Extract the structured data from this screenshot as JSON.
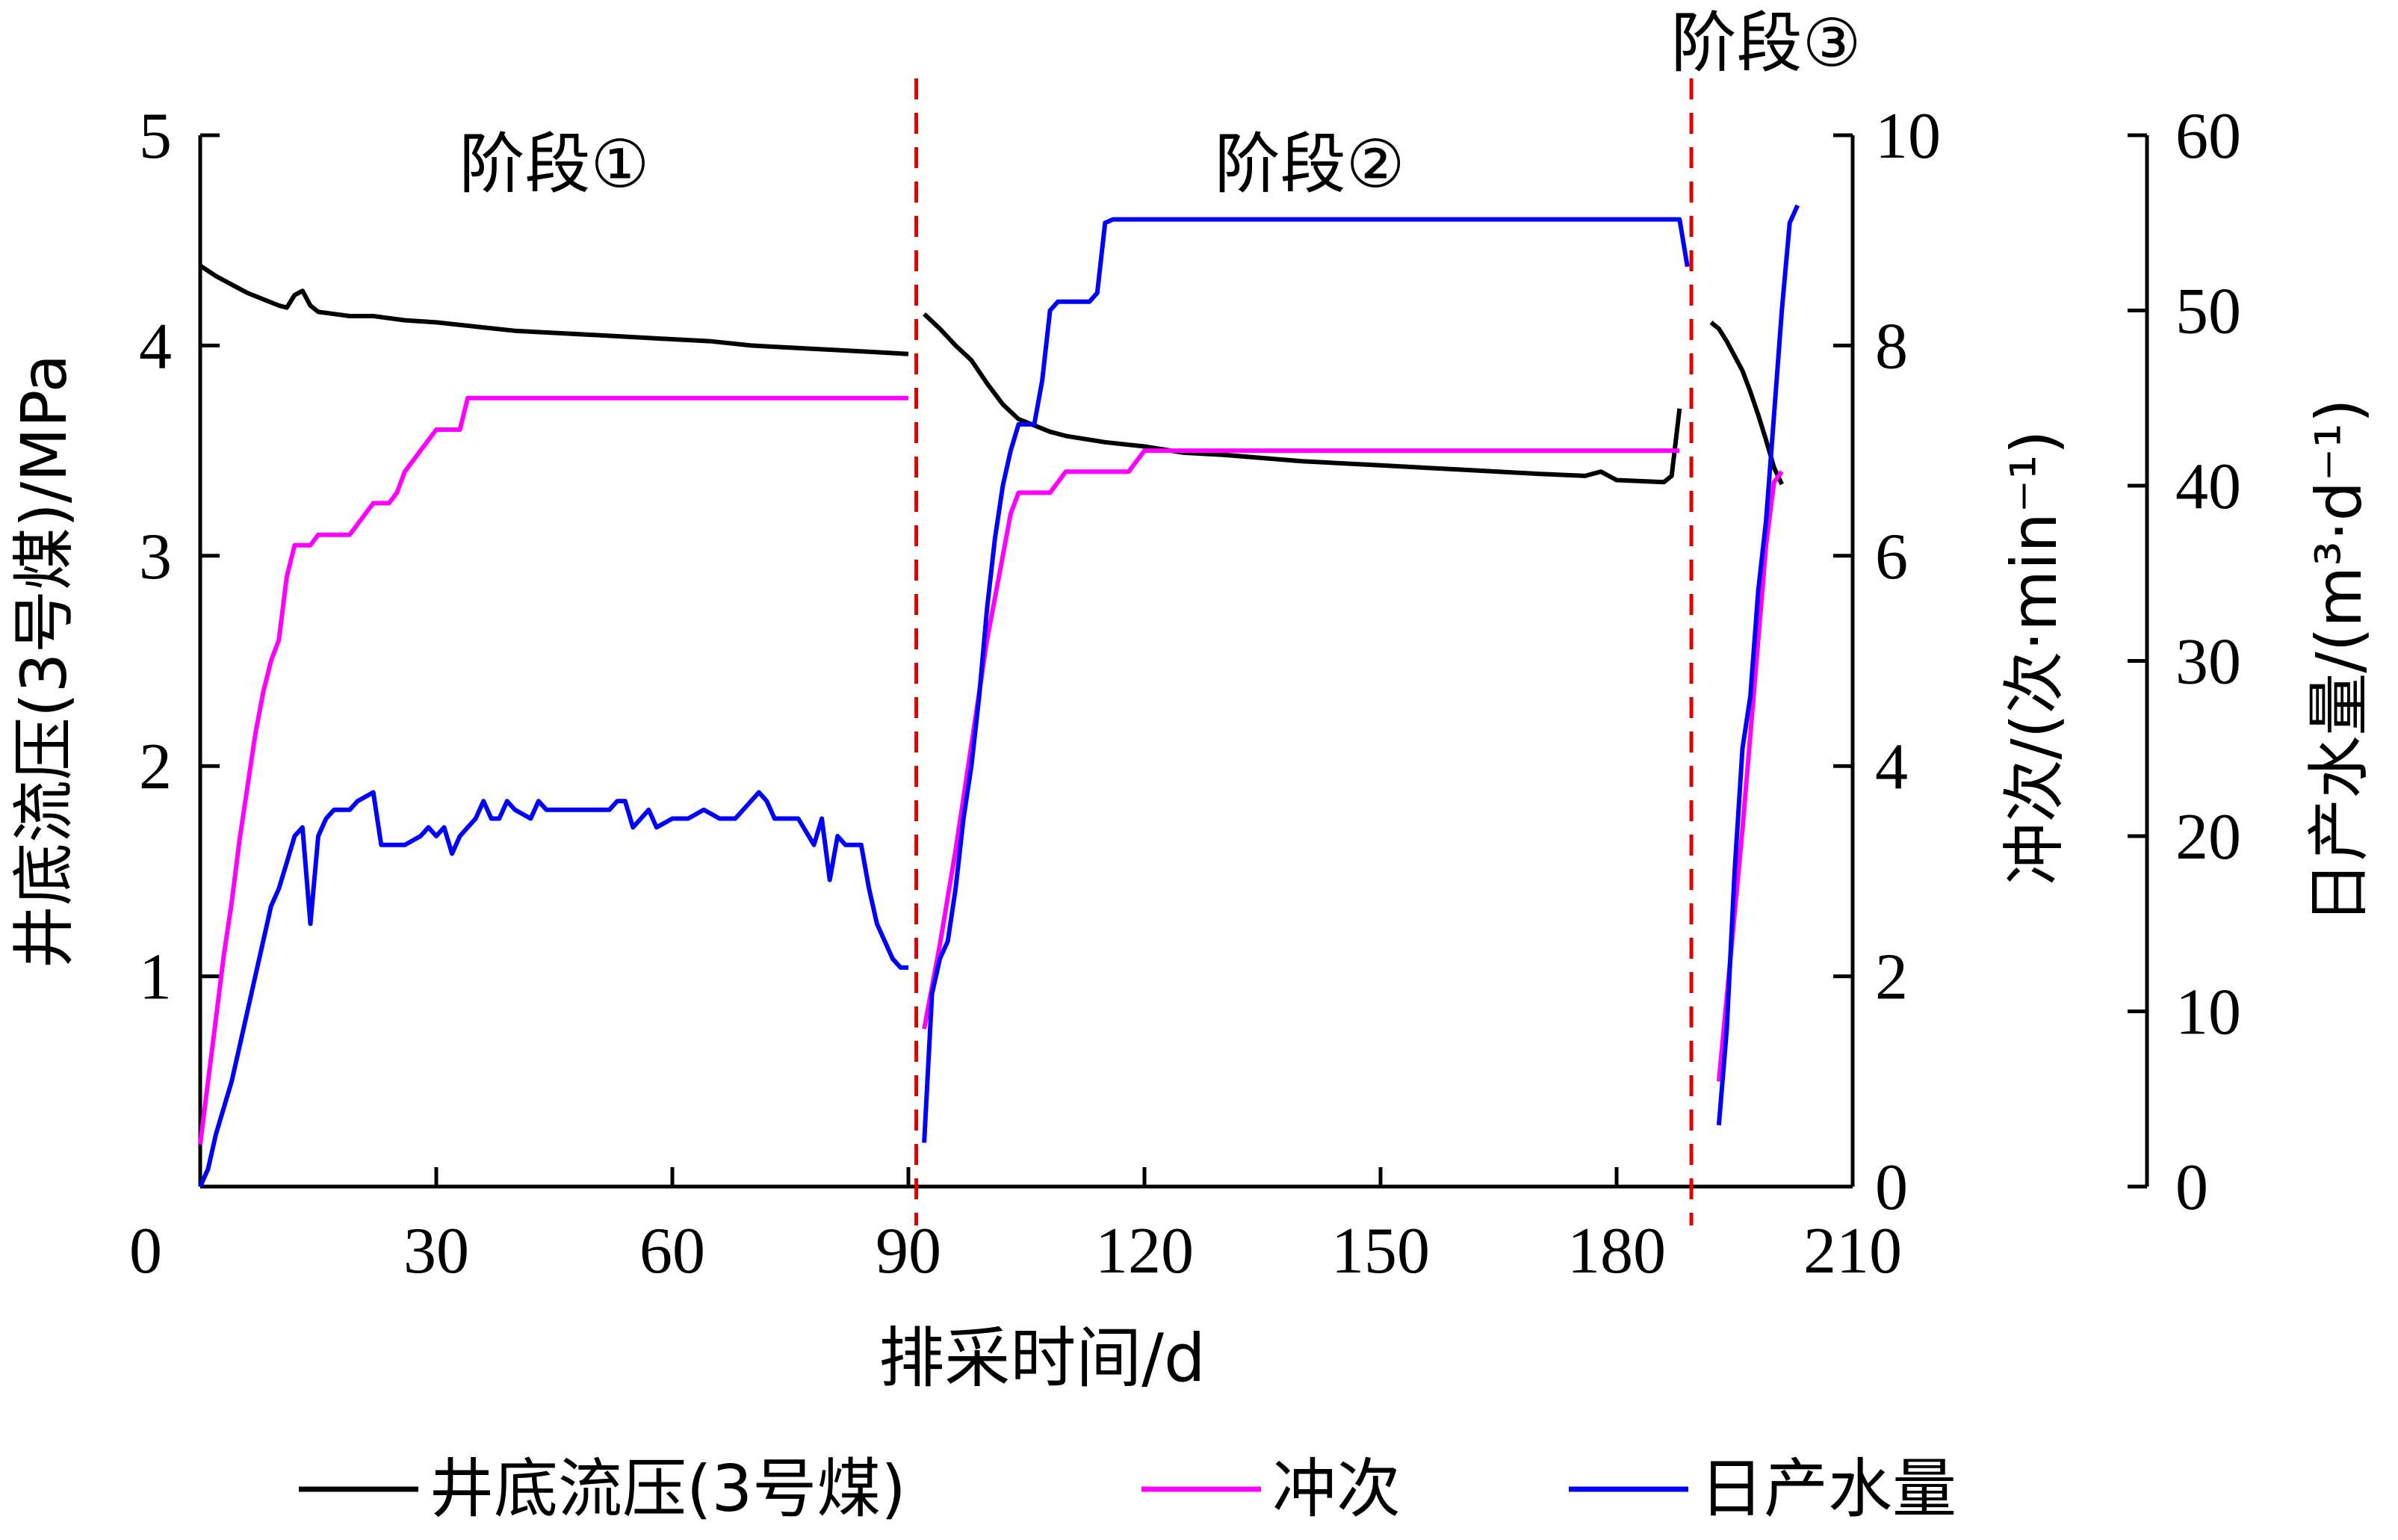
{
  "chart_data": {
    "type": "line",
    "xlabel": "排采时间/d",
    "x_ticks": [
      0,
      30,
      60,
      90,
      120,
      150,
      180,
      210
    ],
    "xlim": [
      0,
      210
    ],
    "y_left": {
      "label": "井底流压(3号煤)/MPa",
      "ticks": [
        1,
        2,
        3,
        4,
        5
      ],
      "lim": [
        0,
        5
      ]
    },
    "y_right1": {
      "label": "冲次/(次·min⁻¹)",
      "ticks": [
        0,
        2,
        4,
        6,
        8,
        10
      ],
      "lim": [
        0,
        10
      ]
    },
    "y_right2": {
      "label": "日产水量/(m³·d⁻¹)",
      "ticks": [
        0,
        10,
        20,
        30,
        40,
        50,
        60
      ],
      "lim": [
        0,
        60
      ]
    },
    "x_zero_label": "0",
    "stage_dividers": [
      91,
      189.5
    ],
    "stages": [
      {
        "label": "阶段①",
        "x": 45
      },
      {
        "label": "阶段②",
        "x": 141
      },
      {
        "label": "阶段③",
        "x": 199
      }
    ],
    "legend": [
      "井底流压(3号煤)",
      "冲次",
      "日产水量"
    ],
    "colors": {
      "pressure": "#000000",
      "strokes": "#ff00ff",
      "water": "#0000ff",
      "divider": "#e00000"
    },
    "series": [
      {
        "name": "井底流压(3号煤)",
        "axis": "left",
        "segments": [
          [
            [
              0,
              4.38
            ],
            [
              2,
              4.33
            ],
            [
              4,
              4.29
            ],
            [
              6,
              4.25
            ],
            [
              8,
              4.22
            ],
            [
              10,
              4.19
            ],
            [
              11,
              4.18
            ],
            [
              12,
              4.24
            ],
            [
              13,
              4.26
            ],
            [
              14,
              4.19
            ],
            [
              15,
              4.16
            ],
            [
              17,
              4.15
            ],
            [
              19,
              4.14
            ],
            [
              22,
              4.14
            ],
            [
              26,
              4.12
            ],
            [
              30,
              4.11
            ],
            [
              35,
              4.09
            ],
            [
              40,
              4.07
            ],
            [
              45,
              4.06
            ],
            [
              50,
              4.05
            ],
            [
              55,
              4.04
            ],
            [
              60,
              4.03
            ],
            [
              65,
              4.02
            ],
            [
              70,
              4.0
            ],
            [
              75,
              3.99
            ],
            [
              80,
              3.98
            ],
            [
              85,
              3.97
            ],
            [
              90,
              3.96
            ]
          ],
          [
            [
              92,
              4.15
            ],
            [
              94,
              4.08
            ],
            [
              96,
              4.0
            ],
            [
              98,
              3.93
            ],
            [
              100,
              3.82
            ],
            [
              102,
              3.72
            ],
            [
              104,
              3.65
            ],
            [
              106,
              3.62
            ],
            [
              108,
              3.59
            ],
            [
              110,
              3.57
            ],
            [
              115,
              3.54
            ],
            [
              120,
              3.52
            ],
            [
              125,
              3.49
            ],
            [
              130,
              3.48
            ],
            [
              140,
              3.45
            ],
            [
              150,
              3.43
            ],
            [
              160,
              3.41
            ],
            [
              170,
              3.39
            ],
            [
              176,
              3.38
            ],
            [
              178,
              3.4
            ],
            [
              180,
              3.36
            ],
            [
              186,
              3.35
            ],
            [
              187,
              3.38
            ],
            [
              188,
              3.7
            ]
          ],
          [
            [
              192,
              4.11
            ],
            [
              193,
              4.08
            ],
            [
              194,
              4.02
            ],
            [
              195,
              3.95
            ],
            [
              196,
              3.88
            ],
            [
              197,
              3.78
            ],
            [
              198,
              3.67
            ],
            [
              199,
              3.55
            ],
            [
              200,
              3.42
            ],
            [
              201,
              3.34
            ]
          ]
        ]
      },
      {
        "name": "冲次",
        "axis": "right1",
        "segments": [
          [
            [
              0,
              0.4
            ],
            [
              1,
              1.0
            ],
            [
              2,
              1.6
            ],
            [
              3,
              2.2
            ],
            [
              4,
              2.7
            ],
            [
              5,
              3.3
            ],
            [
              6,
              3.8
            ],
            [
              7,
              4.3
            ],
            [
              8,
              4.7
            ],
            [
              9,
              5.0
            ],
            [
              10,
              5.2
            ],
            [
              11,
              5.8
            ],
            [
              12,
              6.1
            ],
            [
              14,
              6.1
            ],
            [
              15,
              6.2
            ],
            [
              17,
              6.2
            ],
            [
              19,
              6.2
            ],
            [
              20,
              6.3
            ],
            [
              21,
              6.4
            ],
            [
              22,
              6.5
            ],
            [
              24,
              6.5
            ],
            [
              25,
              6.6
            ],
            [
              26,
              6.8
            ],
            [
              27,
              6.9
            ],
            [
              28,
              7.0
            ],
            [
              29,
              7.1
            ],
            [
              30,
              7.2
            ],
            [
              32,
              7.2
            ],
            [
              33,
              7.2
            ],
            [
              34,
              7.5
            ],
            [
              40,
              7.5
            ],
            [
              50,
              7.5
            ],
            [
              60,
              7.5
            ],
            [
              70,
              7.5
            ],
            [
              80,
              7.5
            ],
            [
              90,
              7.5
            ]
          ],
          [
            [
              92,
              1.5
            ],
            [
              94,
              2.3
            ],
            [
              96,
              3.2
            ],
            [
              98,
              4.2
            ],
            [
              100,
              5.2
            ],
            [
              102,
              6.0
            ],
            [
              103,
              6.4
            ],
            [
              104,
              6.6
            ],
            [
              108,
              6.6
            ],
            [
              110,
              6.8
            ],
            [
              118,
              6.8
            ],
            [
              120,
              7.0
            ],
            [
              130,
              7.0
            ],
            [
              140,
              7.0
            ],
            [
              150,
              7.0
            ],
            [
              160,
              7.0
            ],
            [
              170,
              7.0
            ],
            [
              180,
              7.0
            ],
            [
              188,
              7.0
            ]
          ],
          [
            [
              193,
              1.0
            ],
            [
              194,
              1.8
            ],
            [
              195,
              2.6
            ],
            [
              196,
              3.4
            ],
            [
              197,
              4.3
            ],
            [
              198,
              5.2
            ],
            [
              199,
              6.1
            ],
            [
              200,
              6.7
            ],
            [
              201,
              6.8
            ]
          ]
        ]
      },
      {
        "name": "日产水量",
        "axis": "right2",
        "segments": [
          [
            [
              0,
              0
            ],
            [
              1,
              1
            ],
            [
              2,
              3
            ],
            [
              3,
              4.5
            ],
            [
              4,
              6
            ],
            [
              5,
              8
            ],
            [
              6,
              10
            ],
            [
              7,
              12
            ],
            [
              8,
              14
            ],
            [
              9,
              16
            ],
            [
              10,
              17
            ],
            [
              11,
              18.5
            ],
            [
              12,
              20
            ],
            [
              13,
              20.5
            ],
            [
              14,
              15
            ],
            [
              15,
              20
            ],
            [
              16,
              21
            ],
            [
              17,
              21.5
            ],
            [
              19,
              21.5
            ],
            [
              20,
              22
            ],
            [
              22,
              22.5
            ],
            [
              23,
              19.5
            ],
            [
              24,
              19.5
            ],
            [
              25,
              19.5
            ],
            [
              26,
              19.5
            ],
            [
              28,
              20
            ],
            [
              29,
              20.5
            ],
            [
              30,
              20
            ],
            [
              31,
              20.5
            ],
            [
              32,
              19
            ],
            [
              33,
              20
            ],
            [
              34,
              20.5
            ],
            [
              35,
              21
            ],
            [
              36,
              22
            ],
            [
              37,
              21
            ],
            [
              38,
              21
            ],
            [
              39,
              22
            ],
            [
              40,
              21.5
            ],
            [
              42,
              21
            ],
            [
              43,
              22
            ],
            [
              44,
              21.5
            ],
            [
              46,
              21.5
            ],
            [
              48,
              21.5
            ],
            [
              50,
              21.5
            ],
            [
              52,
              21.5
            ],
            [
              53,
              22
            ],
            [
              54,
              22
            ],
            [
              55,
              20.5
            ],
            [
              56,
              21
            ],
            [
              57,
              21.5
            ],
            [
              58,
              20.5
            ],
            [
              60,
              21
            ],
            [
              62,
              21
            ],
            [
              64,
              21.5
            ],
            [
              66,
              21
            ],
            [
              68,
              21
            ],
            [
              70,
              22
            ],
            [
              71,
              22.5
            ],
            [
              72,
              22
            ],
            [
              73,
              21
            ],
            [
              74,
              21
            ],
            [
              75,
              21
            ],
            [
              76,
              21
            ],
            [
              78,
              19.5
            ],
            [
              79,
              21
            ],
            [
              80,
              17.5
            ],
            [
              81,
              20
            ],
            [
              82,
              19.5
            ],
            [
              84,
              19.5
            ],
            [
              85,
              17
            ],
            [
              86,
              15
            ],
            [
              88,
              13
            ],
            [
              89,
              12.5
            ],
            [
              90,
              12.5
            ]
          ],
          [
            [
              92,
              2.5
            ],
            [
              93,
              11
            ],
            [
              94,
              13
            ],
            [
              95,
              14
            ],
            [
              96,
              17
            ],
            [
              97,
              21
            ],
            [
              98,
              24
            ],
            [
              99,
              28
            ],
            [
              100,
              33
            ],
            [
              101,
              37
            ],
            [
              102,
              40
            ],
            [
              103,
              42
            ],
            [
              104,
              43.5
            ],
            [
              106,
              43.5
            ],
            [
              107,
              46
            ],
            [
              108,
              50
            ],
            [
              109,
              50.5
            ],
            [
              113,
              50.5
            ],
            [
              114,
              51
            ],
            [
              115,
              55
            ],
            [
              116,
              55.2
            ],
            [
              188,
              55.2
            ],
            [
              189,
              52.5
            ]
          ],
          [
            [
              193,
              3.5
            ],
            [
              194,
              9
            ],
            [
              195,
              18
            ],
            [
              196,
              25
            ],
            [
              197,
              28
            ],
            [
              198,
              34
            ],
            [
              199,
              38
            ],
            [
              200,
              44
            ],
            [
              201,
              50
            ],
            [
              202,
              55
            ],
            [
              203,
              56
            ]
          ]
        ]
      }
    ]
  }
}
